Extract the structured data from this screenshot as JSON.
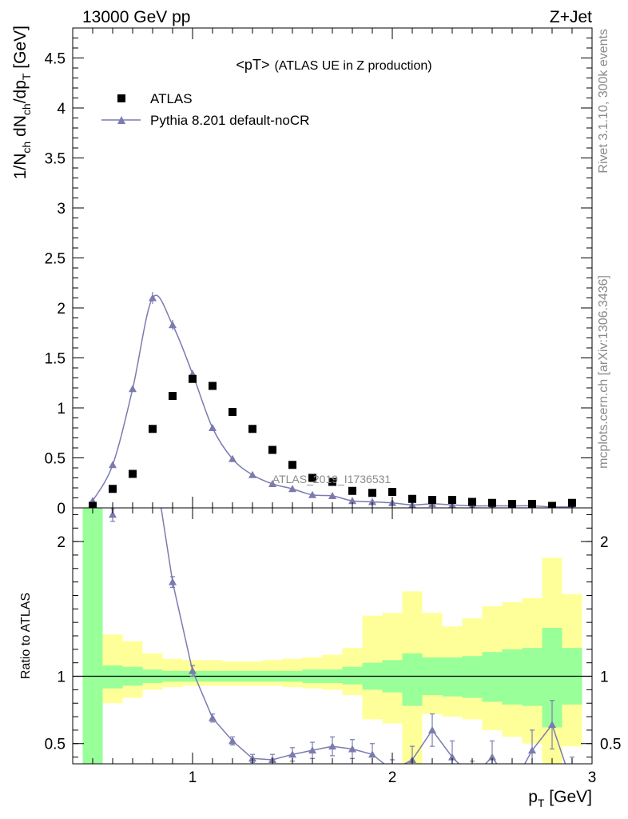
{
  "header": {
    "left_label": "13000 GeV pp",
    "right_label": "Z+Jet"
  },
  "side_labels": {
    "rivet": "Rivet 3.1.10,  300k events",
    "mcplots": "mcplots.cern.ch [arXiv:1306.3436]"
  },
  "colors": {
    "atlas": "#000000",
    "pythia": "#7b7bb0",
    "band_inner": "#99ff99",
    "band_outer": "#ffff99"
  },
  "chart_data": [
    {
      "type": "scatter",
      "title": "<pT> (ATLAS UE in Z production)",
      "title_main": "<pT>",
      "title_rest": "(ATLAS UE in Z production)",
      "watermark": "ATLAS_2019_I1736531",
      "ylabel": "1/N_ch dN_ch/dp_T [GeV]",
      "ylabel_parts": {
        "a": "1/N",
        "a_sub": "ch",
        "b": " dN",
        "b_sub": "ch",
        "c": "/dp",
        "c_sub": "T",
        "d": " [GeV]"
      },
      "xlim": [
        0.4,
        3.0
      ],
      "ylim": [
        0,
        4.8
      ],
      "yticks": [
        0,
        0.5,
        1,
        1.5,
        2,
        2.5,
        3,
        3.5,
        4,
        4.5
      ],
      "ytick_labels": [
        "0",
        "0.5",
        "1",
        "1.5",
        "2",
        "2.5",
        "3",
        "3.5",
        "4",
        "4.5"
      ],
      "legend": [
        "ATLAS",
        "Pythia 8.201 default-noCR"
      ],
      "x": [
        0.5,
        0.6,
        0.7,
        0.8,
        0.9,
        1.0,
        1.1,
        1.2,
        1.3,
        1.4,
        1.5,
        1.6,
        1.7,
        1.8,
        1.9,
        2.0,
        2.1,
        2.2,
        2.3,
        2.4,
        2.5,
        2.6,
        2.7,
        2.8,
        2.9
      ],
      "series": [
        {
          "name": "ATLAS",
          "values": [
            0.02,
            0.19,
            0.34,
            0.79,
            1.12,
            1.29,
            1.22,
            0.96,
            0.79,
            0.58,
            0.43,
            0.3,
            0.26,
            0.17,
            0.15,
            0.16,
            0.09,
            0.08,
            0.08,
            0.06,
            0.05,
            0.04,
            0.04,
            0.02,
            0.05
          ]
        },
        {
          "name": "Pythia 8.201 default-noCR",
          "values": [
            0.07,
            0.43,
            1.19,
            2.1,
            1.83,
            1.34,
            0.8,
            0.49,
            0.33,
            0.24,
            0.19,
            0.13,
            0.12,
            0.07,
            0.06,
            0.05,
            0.03,
            0.04,
            0.03,
            0.02,
            0.02,
            0.02,
            0.02,
            0.01,
            0.01
          ],
          "errors": [
            0.01,
            0.02,
            0.03,
            0.06,
            0.05,
            0.04,
            0.02,
            0.02,
            0.01,
            0.01,
            0.01,
            0.01,
            0.01,
            0.01,
            0.01,
            0.01,
            0.01,
            0.01,
            0.01,
            0.01,
            0.01,
            0.01,
            0.01,
            0.01,
            0.01
          ]
        }
      ]
    },
    {
      "type": "line",
      "ylabel": "Ratio to ATLAS",
      "xlabel": "p_T [GeV]",
      "xlabel_parts": {
        "a": "p",
        "a_sub": "T",
        "b": " [GeV]"
      },
      "xlim": [
        0.4,
        3.0
      ],
      "ylim": [
        0.35,
        2.25
      ],
      "xticks": [
        1,
        2,
        3
      ],
      "xtick_labels": [
        "1",
        "2",
        "3"
      ],
      "yticks": [
        0.5,
        1,
        2
      ],
      "ytick_labels": [
        "0.5",
        "1",
        "2"
      ],
      "reference_line": 1,
      "bin_edges": [
        0.45,
        0.55,
        0.65,
        0.75,
        0.85,
        0.95,
        1.05,
        1.15,
        1.25,
        1.35,
        1.45,
        1.55,
        1.65,
        1.75,
        1.85,
        1.95,
        2.05,
        2.15,
        2.25,
        2.35,
        2.45,
        2.55,
        2.65,
        2.75,
        2.85,
        2.95
      ],
      "band_inner_lo": [
        0.35,
        0.91,
        0.93,
        0.95,
        0.96,
        0.96,
        0.96,
        0.96,
        0.96,
        0.96,
        0.96,
        0.95,
        0.95,
        0.94,
        0.9,
        0.88,
        0.78,
        0.86,
        0.85,
        0.84,
        0.81,
        0.79,
        0.78,
        0.62,
        0.79
      ],
      "band_inner_hi": [
        2.25,
        1.08,
        1.07,
        1.05,
        1.04,
        1.04,
        1.04,
        1.04,
        1.04,
        1.04,
        1.04,
        1.05,
        1.05,
        1.07,
        1.1,
        1.12,
        1.17,
        1.14,
        1.14,
        1.15,
        1.18,
        1.2,
        1.21,
        1.36,
        1.21
      ],
      "band_outer_lo": [
        0.35,
        0.8,
        0.84,
        0.9,
        0.92,
        0.93,
        0.93,
        0.93,
        0.93,
        0.93,
        0.92,
        0.91,
        0.9,
        0.86,
        0.68,
        0.65,
        0.35,
        0.72,
        0.7,
        0.68,
        0.6,
        0.55,
        0.5,
        0.35,
        0.48
      ],
      "band_outer_hi": [
        2.25,
        1.31,
        1.26,
        1.17,
        1.13,
        1.12,
        1.12,
        1.11,
        1.11,
        1.12,
        1.13,
        1.14,
        1.16,
        1.21,
        1.45,
        1.47,
        1.63,
        1.47,
        1.37,
        1.43,
        1.52,
        1.55,
        1.58,
        1.88,
        1.61
      ],
      "series": [
        {
          "name": "Pythia 8.201 default-noCR",
          "values": [
            3.5,
            2.2,
            3.5,
            2.66,
            1.7,
            1.04,
            0.69,
            0.52,
            0.39,
            0.38,
            0.42,
            0.45,
            0.48,
            0.46,
            0.42,
            0.3,
            0.38,
            0.6,
            0.4,
            0.25,
            0.4,
            0.18,
            0.45,
            0.64,
            0.2
          ],
          "errors": [
            0.1,
            0.05,
            0.1,
            0.08,
            0.04,
            0.04,
            0.03,
            0.03,
            0.03,
            0.04,
            0.05,
            0.06,
            0.07,
            0.07,
            0.08,
            0.08,
            0.1,
            0.12,
            0.12,
            0.12,
            0.12,
            0.12,
            0.15,
            0.18,
            0.2
          ]
        }
      ]
    }
  ]
}
